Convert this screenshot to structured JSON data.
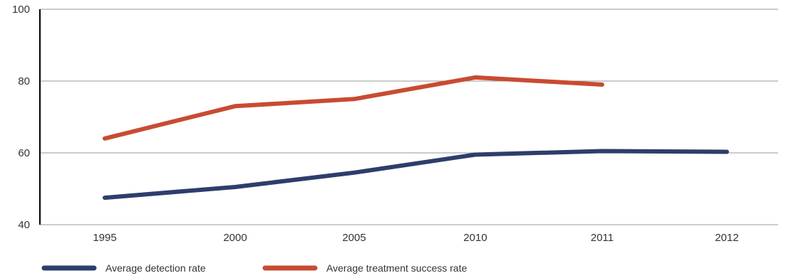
{
  "chart_data": {
    "type": "line",
    "categories": [
      "1995",
      "2000",
      "2005",
      "2010",
      "2011",
      "2012"
    ],
    "ylim": [
      40,
      100
    ],
    "yticks": [
      "40",
      "60",
      "80",
      "100"
    ],
    "grid": true,
    "legend_position": "bottom-left",
    "series": [
      {
        "name": "Average detection rate",
        "color": "#2d3e6b",
        "values": [
          47.5,
          50.5,
          54.5,
          59.5,
          60.5,
          60.3
        ]
      },
      {
        "name": "Average treatment success rate",
        "color": "#c84b32",
        "values": [
          64,
          73,
          75,
          81,
          79,
          null
        ]
      }
    ]
  }
}
